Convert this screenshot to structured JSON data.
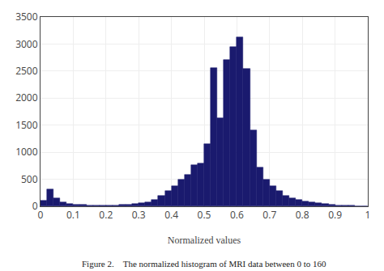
{
  "chart_data": {
    "type": "histogram",
    "xlabel": "Normalized values",
    "annotations": [
      "Figure 2.    The normalized histogram of MRI data between 0 to 160"
    ],
    "bins": [
      0,
      0.02,
      0.04,
      0.06,
      0.08,
      0.1,
      0.12,
      0.14,
      0.16,
      0.18,
      0.2,
      0.22,
      0.24,
      0.26,
      0.28,
      0.3,
      0.32,
      0.34,
      0.36,
      0.38,
      0.4,
      0.42,
      0.44,
      0.46,
      0.48,
      0.5,
      0.52,
      0.54,
      0.56,
      0.58,
      0.6,
      0.62,
      0.64,
      0.66,
      0.68,
      0.7,
      0.72,
      0.74,
      0.76,
      0.78,
      0.8,
      0.82,
      0.84,
      0.86,
      0.88,
      0.9,
      0.92,
      0.94,
      0.96,
      0.98,
      1
    ],
    "values": [
      100,
      320,
      150,
      70,
      45,
      35,
      28,
      22,
      20,
      20,
      20,
      22,
      25,
      30,
      40,
      55,
      75,
      120,
      200,
      280,
      370,
      490,
      580,
      760,
      800,
      1150,
      2560,
      1630,
      2700,
      2950,
      3130,
      2550,
      1400,
      720,
      500,
      380,
      280,
      200,
      150,
      120,
      90,
      70,
      55,
      40,
      30,
      20,
      12,
      8,
      5,
      3
    ],
    "color": "#1a1a6e",
    "xlim": [
      0,
      1
    ],
    "ylim": [
      0,
      3500
    ],
    "xticks": [
      0,
      0.1,
      0.2,
      0.3,
      0.4,
      0.5,
      0.6,
      0.7,
      0.8,
      0.9,
      1
    ],
    "yticks": [
      0,
      500,
      1000,
      1500,
      2000,
      2500,
      3000,
      3500
    ],
    "grid": true
  }
}
